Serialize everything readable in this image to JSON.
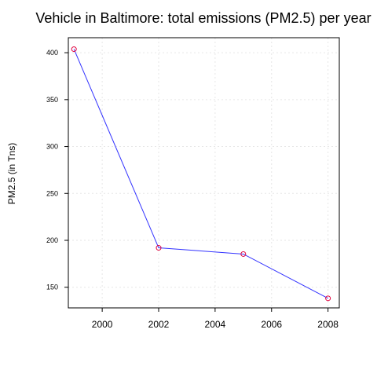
{
  "chart_data": {
    "type": "line",
    "title": "Vehicle in Baltimore: total emissions (PM2.5) per year",
    "xlabel": "",
    "ylabel": "PM2.5 (in Tns)",
    "x": [
      1999,
      2002,
      2005,
      2008
    ],
    "series": [
      {
        "values": [
          403.8,
          192.0,
          185.4,
          138.2
        ]
      }
    ],
    "xticks": [
      "2000",
      "2002",
      "2004",
      "2006",
      "2008"
    ],
    "yticks": [
      "150",
      "200",
      "250",
      "300",
      "350",
      "400"
    ],
    "xlim": [
      1998.8,
      2008.4
    ],
    "ylim": [
      128,
      416
    ],
    "grid": true,
    "colors": {
      "line": "#3333ff",
      "point": "#e0003c",
      "grid": "#e6e6e6",
      "axis": "#000000"
    }
  }
}
